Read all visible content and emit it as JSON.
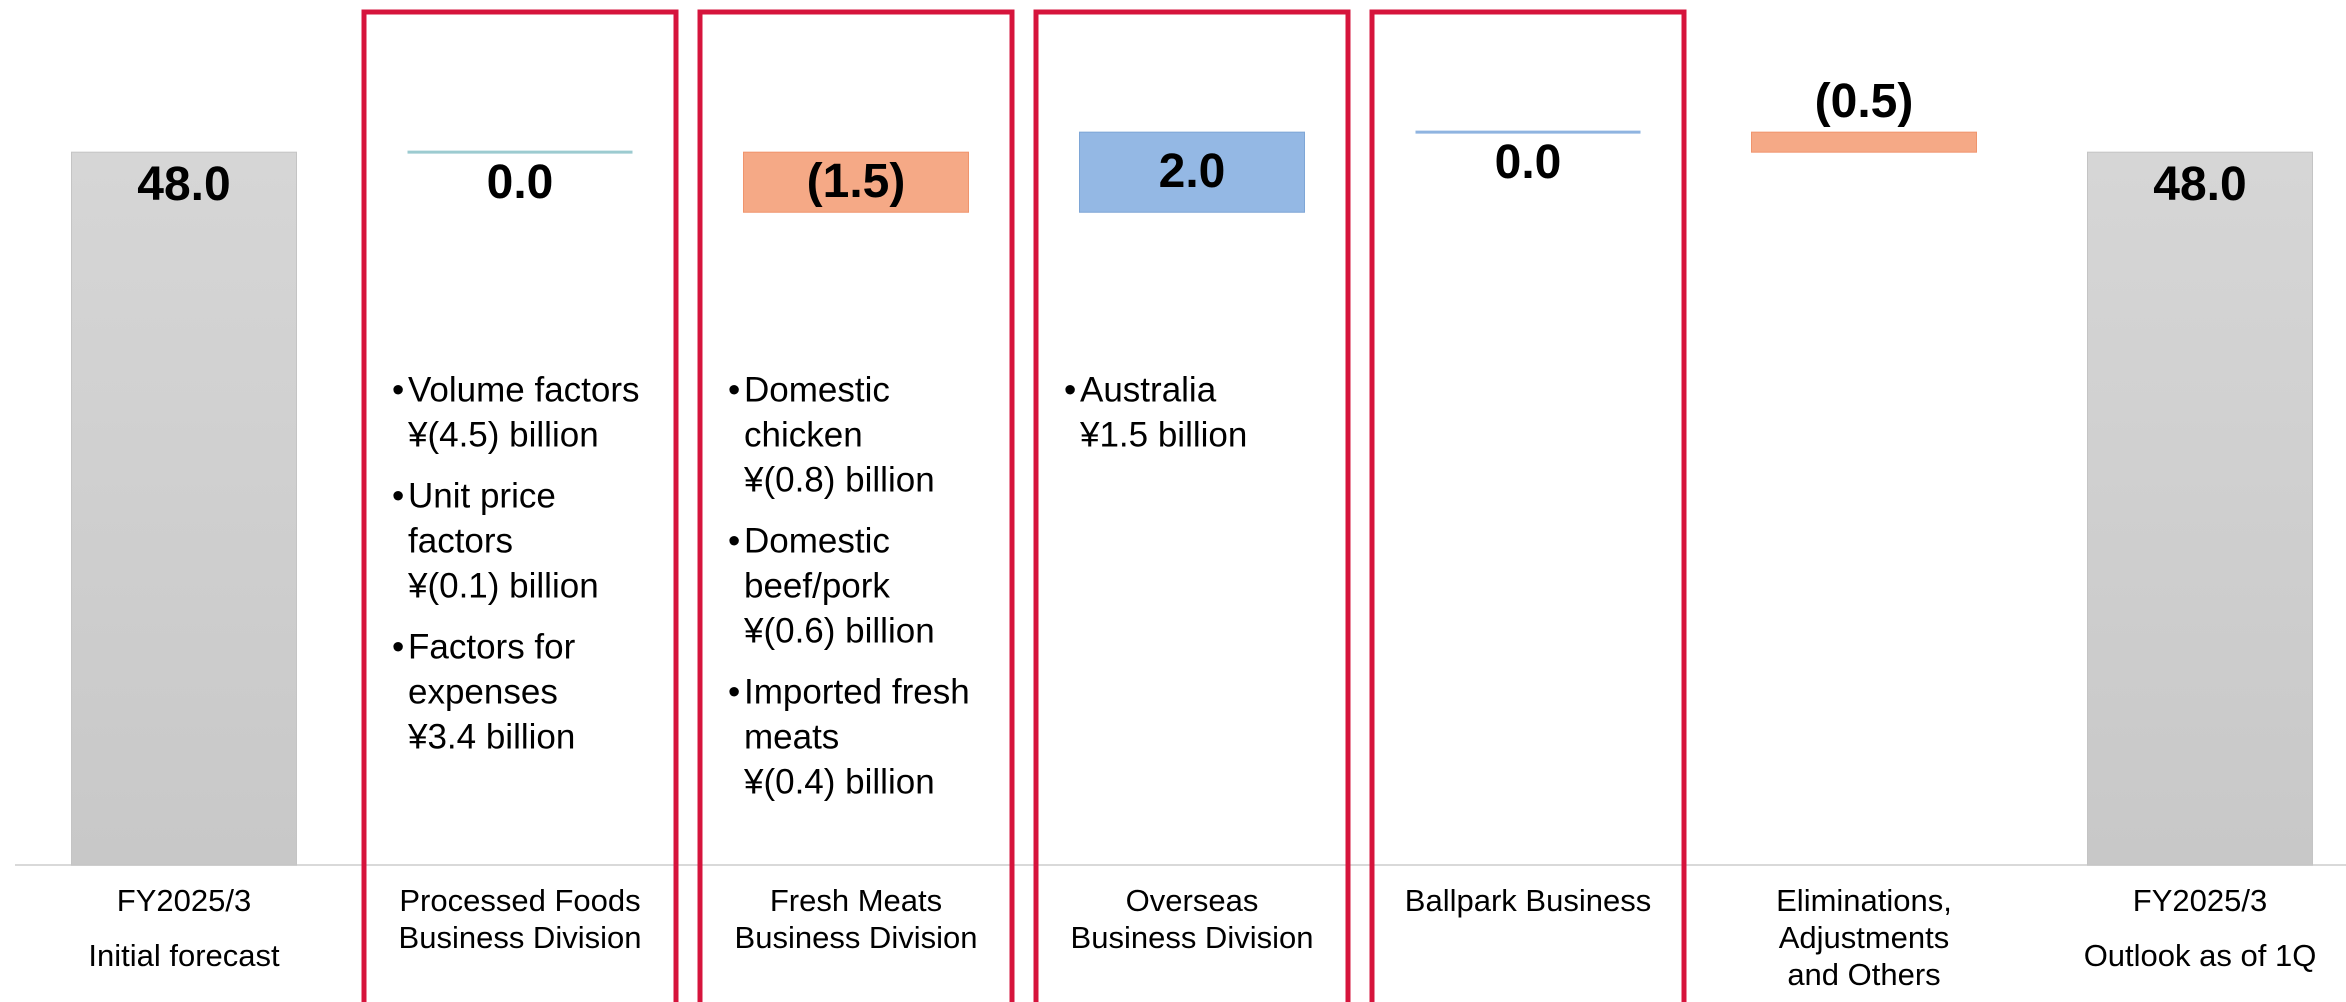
{
  "chart_data": {
    "type": "waterfall",
    "categories": [
      "FY2025/3\nInitial forecast",
      "Processed Foods\nBusiness Division",
      "Fresh Meats\nBusiness Division",
      "Overseas\nBusiness Division",
      "Ballpark Business",
      "Eliminations,\nAdjustments\nand Others",
      "FY2025/3\nOutlook as of 1Q"
    ],
    "kinds": [
      "total",
      "delta",
      "delta",
      "delta",
      "delta",
      "delta",
      "total"
    ],
    "values": [
      48.0,
      0.0,
      -1.5,
      2.0,
      0.0,
      -0.5,
      48.0
    ],
    "value_labels": [
      "48.0",
      "0.0",
      "(1.5)",
      "2.0",
      "0.0",
      "(0.5)",
      "48.0"
    ],
    "colors": {
      "total": "#d0d0d0",
      "positive": "#94b8e4",
      "negative": "#f5a986",
      "zero_positive": "#8fb4e0",
      "zero_neutral": "#9ccbd0"
    },
    "highlighted": [
      1,
      2,
      3,
      4
    ],
    "notes": [
      [],
      [
        [
          "Volume factors",
          "¥(4.5) billion"
        ],
        [
          "Unit price",
          "factors",
          "¥(0.1) billion"
        ],
        [
          "Factors for",
          "expenses",
          "¥3.4 billion"
        ]
      ],
      [
        [
          "Domestic",
          "chicken",
          "¥(0.8) billion"
        ],
        [
          "Domestic",
          "beef/pork",
          "¥(0.6) billion"
        ],
        [
          "Imported fresh",
          "meats",
          "¥(0.4) billion"
        ]
      ],
      [
        [
          "Australia",
          "¥1.5 billion"
        ]
      ],
      [],
      [],
      []
    ],
    "ylim": [
      30.2,
      51.8
    ]
  }
}
